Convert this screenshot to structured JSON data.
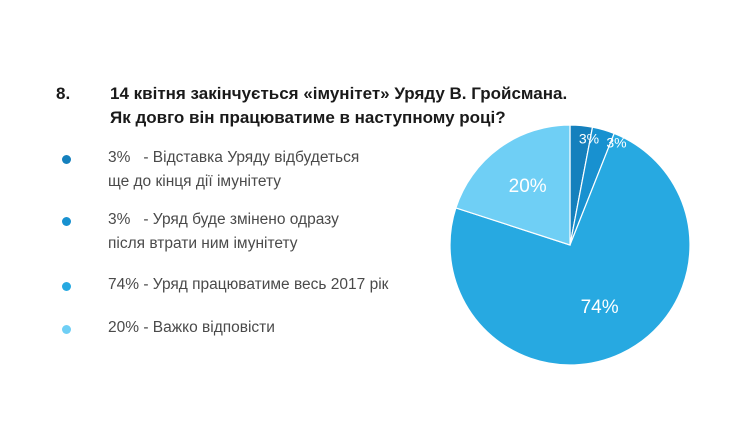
{
  "question": {
    "number": "8.",
    "line1": "14 квітня закінчується «імунітет» Уряду В. Гройсмана.",
    "line2": "Як довго він працюватиме в наступному році?"
  },
  "legend": [
    {
      "pct": "3%",
      "line1": "- Відставка Уряду відбудеться",
      "line2": "ще до кінця дії імунітету"
    },
    {
      "pct": "3%",
      "line1": "- Уряд буде змінено одразу",
      "line2": "після втрати ним імунітету"
    },
    {
      "pct": "74%",
      "line1": "- Уряд працюватиме весь 2017 рік",
      "line2": ""
    },
    {
      "pct": "20%",
      "line1": "- Важко відповісти",
      "line2": ""
    }
  ],
  "chart_data": {
    "type": "pie",
    "categories": [
      "Відставка Уряду відбудеться ще до кінця дії імунітету",
      "Уряд буде змінено одразу після втрати ним імунітету",
      "Уряд працюватиме весь 2017 рік",
      "Важко відповісти"
    ],
    "values": [
      3,
      3,
      74,
      20
    ],
    "labels": [
      "3%",
      "3%",
      "74%",
      "20%"
    ],
    "colors": [
      "#1580bd",
      "#1891d0",
      "#27a9e1",
      "#6fcff5"
    ]
  }
}
